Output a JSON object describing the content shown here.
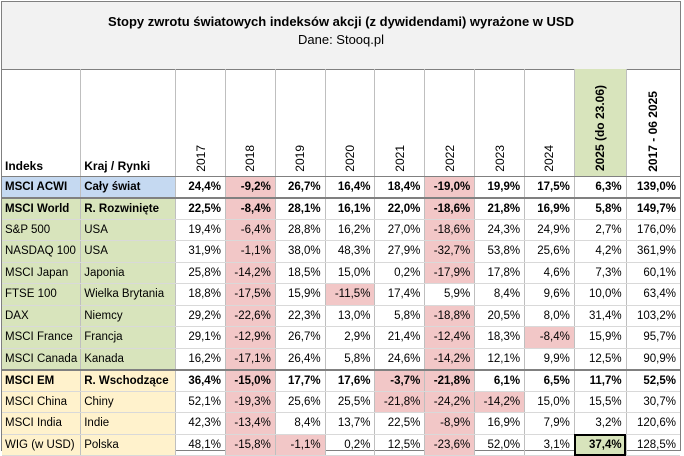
{
  "title": "Stopy zwrotu światowych indeksów akcji (z dywidendami) wyrażone w USD",
  "subtitle": "Dane: Stooq.pl",
  "headers": {
    "index": "Indeks",
    "region": "Kraj / Rynki",
    "years": [
      "2017",
      "2018",
      "2019",
      "2020",
      "2021",
      "2022",
      "2023",
      "2024",
      "2025 (do 23.06)",
      "2017 - 06 2025"
    ]
  },
  "colors": {
    "acwi_row": "#c5d9f1",
    "developed_group": "#d8e4bc",
    "emerging_group": "#fff2cc",
    "negative_highlight": "#f2c7c7",
    "year_2025_header": "#d8e4bc"
  },
  "rows": [
    {
      "name": "MSCI ACWI",
      "region": "Cały świat",
      "values": [
        "24,4%",
        "-9,2%",
        "26,7%",
        "16,4%",
        "18,4%",
        "-19,0%",
        "19,9%",
        "17,5%",
        "6,3%",
        "139,0%"
      ]
    },
    {
      "name": "MSCI World",
      "region": "R. Rozwinięte",
      "values": [
        "22,5%",
        "-8,4%",
        "28,1%",
        "16,1%",
        "22,0%",
        "-18,6%",
        "21,8%",
        "16,9%",
        "5,8%",
        "149,7%"
      ]
    },
    {
      "name": "S&P 500",
      "region": "USA",
      "values": [
        "19,4%",
        "-6,4%",
        "28,8%",
        "16,2%",
        "27,0%",
        "-18,6%",
        "24,3%",
        "24,9%",
        "2,7%",
        "176,0%"
      ]
    },
    {
      "name": "NASDAQ 100",
      "region": "USA",
      "values": [
        "31,9%",
        "-1,1%",
        "38,0%",
        "48,3%",
        "27,9%",
        "-32,7%",
        "53,8%",
        "25,6%",
        "4,2%",
        "361,9%"
      ]
    },
    {
      "name": "MSCI Japan",
      "region": "Japonia",
      "values": [
        "25,8%",
        "-14,2%",
        "18,5%",
        "15,0%",
        "0,2%",
        "-17,9%",
        "17,8%",
        "4,6%",
        "7,3%",
        "60,1%"
      ]
    },
    {
      "name": "FTSE 100",
      "region": "Wielka Brytania",
      "values": [
        "18,8%",
        "-17,5%",
        "15,9%",
        "-11,5%",
        "17,4%",
        "5,9%",
        "8,4%",
        "9,6%",
        "10,0%",
        "63,4%"
      ]
    },
    {
      "name": "DAX",
      "region": "Niemcy",
      "values": [
        "29,2%",
        "-22,6%",
        "22,3%",
        "13,0%",
        "5,8%",
        "-18,8%",
        "20,5%",
        "8,0%",
        "31,4%",
        "103,2%"
      ]
    },
    {
      "name": "MSCI France",
      "region": "Francja",
      "values": [
        "29,1%",
        "-12,9%",
        "26,7%",
        "2,9%",
        "21,4%",
        "-12,4%",
        "18,3%",
        "-8,4%",
        "15,9%",
        "95,7%"
      ]
    },
    {
      "name": "MSCI Canada",
      "region": "Kanada",
      "values": [
        "16,2%",
        "-17,1%",
        "26,4%",
        "5,8%",
        "24,6%",
        "-14,2%",
        "12,1%",
        "9,9%",
        "12,5%",
        "90,9%"
      ]
    },
    {
      "name": "MSCI EM",
      "region": "R. Wschodzące",
      "values": [
        "36,4%",
        "-15,0%",
        "17,7%",
        "17,6%",
        "-3,7%",
        "-21,8%",
        "6,1%",
        "6,5%",
        "11,7%",
        "52,5%"
      ]
    },
    {
      "name": "MSCI China",
      "region": "Chiny",
      "values": [
        "52,1%",
        "-19,3%",
        "25,6%",
        "25,5%",
        "-21,8%",
        "-24,2%",
        "-14,2%",
        "15,0%",
        "15,5%",
        "30,7%"
      ]
    },
    {
      "name": "MSCI India",
      "region": "Indie",
      "values": [
        "42,3%",
        "-13,4%",
        "8,4%",
        "13,7%",
        "22,5%",
        "-8,9%",
        "16,9%",
        "7,9%",
        "3,2%",
        "120,6%"
      ]
    },
    {
      "name": "WIG (w USD)",
      "region": "Polska",
      "values": [
        "48,1%",
        "-15,8%",
        "-1,1%",
        "0,2%",
        "12,5%",
        "-23,6%",
        "52,0%",
        "3,1%",
        "37,4%",
        "128,5%"
      ]
    }
  ]
}
